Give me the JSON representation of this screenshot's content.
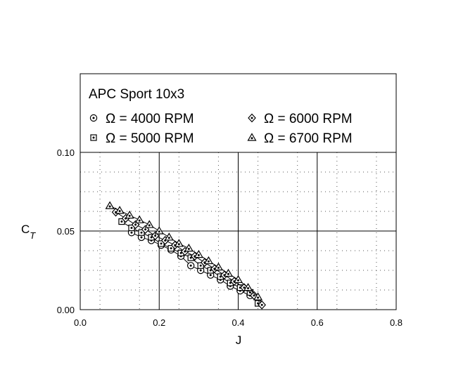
{
  "chart_data": {
    "type": "scatter",
    "title": "APC Sport 10x3",
    "xlabel": "J",
    "ylabel": {
      "main": "C",
      "sub": "T"
    },
    "xlim": [
      0.0,
      0.8
    ],
    "ylim": [
      0.0,
      0.15
    ],
    "x_ticks": [
      "0.0",
      "0.2",
      "0.4",
      "0.6",
      "0.8"
    ],
    "y_ticks": [
      {
        "value": 0.0,
        "label": "0.00"
      },
      {
        "value": 0.05,
        "label": "0.05"
      },
      {
        "value": 0.1,
        "label": "0.10"
      }
    ],
    "grid": true,
    "legend_position": "top (inside upper band)",
    "series": [
      {
        "name": "Ω = 4000 RPM",
        "marker": "circle-dot",
        "x": [
          0.13,
          0.155,
          0.18,
          0.205,
          0.23,
          0.255,
          0.28,
          0.305,
          0.33,
          0.355,
          0.38,
          0.405,
          0.43
        ],
        "y": [
          0.049,
          0.046,
          0.044,
          0.041,
          0.038,
          0.034,
          0.028,
          0.025,
          0.022,
          0.019,
          0.015,
          0.012,
          0.009
        ]
      },
      {
        "name": "Ω = 5000 RPM",
        "marker": "square-dot",
        "x": [
          0.105,
          0.13,
          0.155,
          0.18,
          0.205,
          0.23,
          0.255,
          0.28,
          0.305,
          0.33,
          0.355,
          0.38,
          0.405,
          0.43,
          0.45
        ],
        "y": [
          0.056,
          0.052,
          0.049,
          0.046,
          0.042,
          0.039,
          0.036,
          0.033,
          0.028,
          0.025,
          0.021,
          0.017,
          0.014,
          0.011,
          0.004
        ]
      },
      {
        "name": "Ω = 6000 RPM",
        "marker": "diamond-dot",
        "x": [
          0.09,
          0.115,
          0.14,
          0.165,
          0.19,
          0.215,
          0.24,
          0.265,
          0.29,
          0.315,
          0.34,
          0.365,
          0.39,
          0.415,
          0.44,
          0.46
        ],
        "y": [
          0.062,
          0.058,
          0.054,
          0.051,
          0.047,
          0.044,
          0.041,
          0.037,
          0.034,
          0.03,
          0.026,
          0.022,
          0.018,
          0.014,
          0.009,
          0.003
        ]
      },
      {
        "name": "Ω = 6700 RPM",
        "marker": "triangle-dot",
        "x": [
          0.075,
          0.1,
          0.125,
          0.15,
          0.175,
          0.2,
          0.225,
          0.25,
          0.275,
          0.3,
          0.325,
          0.35,
          0.375,
          0.4,
          0.425,
          0.45
        ],
        "y": [
          0.066,
          0.063,
          0.06,
          0.057,
          0.054,
          0.05,
          0.046,
          0.042,
          0.039,
          0.035,
          0.031,
          0.027,
          0.023,
          0.019,
          0.014,
          0.008
        ]
      }
    ]
  }
}
